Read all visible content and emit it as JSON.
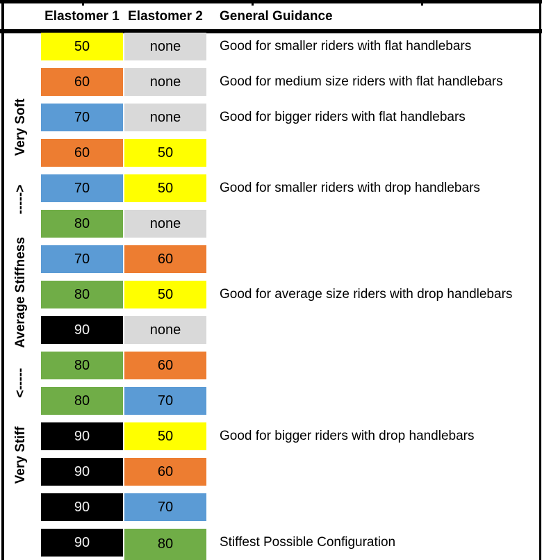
{
  "header": {
    "elastomer1": "Elastomer 1",
    "elastomer2": "Elastomer 2",
    "guidance": "General Guidance"
  },
  "colors": {
    "50": "#FFFF00",
    "60": "#ED7D31",
    "70": "#5B9BD5",
    "80": "#70AD47",
    "90": "#000000",
    "none": "#D9D9D9"
  },
  "value_text_colors": {
    "90": "#F2F2F2",
    "default": "#000000"
  },
  "chart_data": {
    "type": "table",
    "columns": [
      "Elastomer 1",
      "Elastomer 2",
      "General Guidance"
    ],
    "stiffness_scale": [
      "Very Soft",
      "----->",
      "Average Stiffness",
      "<-----",
      "Very Stiff"
    ],
    "rows": [
      {
        "e1": "50",
        "e2": "none",
        "guidance": "Good for smaller riders with flat handlebars"
      },
      {
        "e1": "60",
        "e2": "none",
        "guidance": "Good for medium size riders with flat handlebars"
      },
      {
        "e1": "70",
        "e2": "none",
        "guidance": "Good for bigger riders with flat handlebars"
      },
      {
        "e1": "60",
        "e2": "50",
        "guidance": ""
      },
      {
        "e1": "70",
        "e2": "50",
        "guidance": "Good for smaller riders with drop handlebars"
      },
      {
        "e1": "80",
        "e2": "none",
        "guidance": ""
      },
      {
        "e1": "70",
        "e2": "60",
        "guidance": ""
      },
      {
        "e1": "80",
        "e2": "50",
        "guidance": "Good for average size riders with drop handlebars"
      },
      {
        "e1": "90",
        "e2": "none",
        "guidance": ""
      },
      {
        "e1": "80",
        "e2": "60",
        "guidance": ""
      },
      {
        "e1": "80",
        "e2": "70",
        "guidance": ""
      },
      {
        "e1": "90",
        "e2": "50",
        "guidance": "Good for bigger riders with drop handlebars"
      },
      {
        "e1": "90",
        "e2": "60",
        "guidance": ""
      },
      {
        "e1": "90",
        "e2": "70",
        "guidance": ""
      },
      {
        "e1": "90",
        "e2": "80",
        "guidance": "Stiffest Possible Configuration"
      }
    ]
  }
}
